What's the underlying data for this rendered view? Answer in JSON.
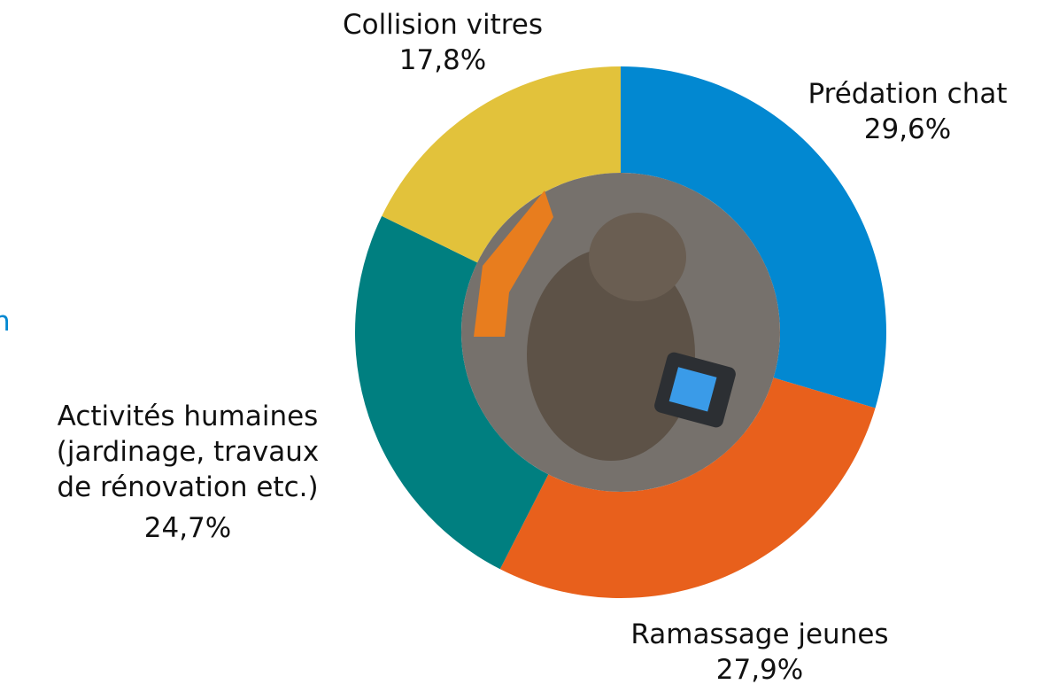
{
  "chart_data": {
    "type": "donut",
    "categories": [
      "Prédation chat",
      "Ramassage jeunes",
      "Activités humaines (jardinage, travaux de rénovation etc.)",
      "Collision vitres"
    ],
    "values": [
      29.6,
      27.9,
      24.7,
      17.8
    ],
    "value_labels": [
      "29,6%",
      "27,9%",
      "24,7%",
      "17,8%"
    ],
    "colors": [
      "#0288d1",
      "#e8601c",
      "#007f80",
      "#e2c23b"
    ]
  },
  "side_fragment": "n"
}
